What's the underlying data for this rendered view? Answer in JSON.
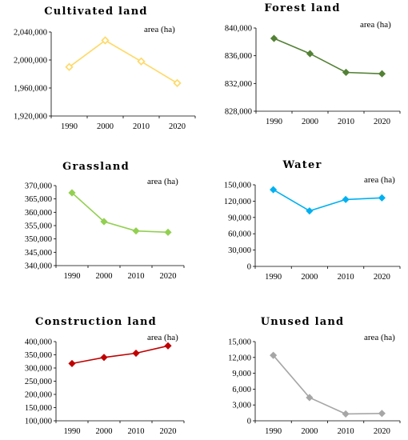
{
  "chart_data": [
    {
      "type": "line",
      "title": "Cultivated land",
      "unit_label": "area (ha)",
      "categories": [
        "1990",
        "2000",
        "2010",
        "2020"
      ],
      "series": [
        {
          "values": [
            1990000,
            2028000,
            1998000,
            1967000
          ]
        }
      ],
      "ylim": [
        1920000,
        2040000
      ],
      "yticks": [
        1920000,
        1960000,
        2000000,
        2040000
      ],
      "ytick_labels": [
        "1,920,000",
        "1,960,000",
        "2,000,000",
        "2,040,000"
      ],
      "color": "#ffd966",
      "marker": "diamond-open"
    },
    {
      "type": "line",
      "title": "Forest land",
      "unit_label": "area (ha)",
      "categories": [
        "1990",
        "2000",
        "2010",
        "2020"
      ],
      "series": [
        {
          "values": [
            838500,
            836300,
            833600,
            833400
          ]
        }
      ],
      "ylim": [
        828000,
        840000
      ],
      "yticks": [
        828000,
        832000,
        836000,
        840000
      ],
      "ytick_labels": [
        "828,000",
        "832,000",
        "836,000",
        "840,000"
      ],
      "color": "#538135",
      "marker": "diamond"
    },
    {
      "type": "line",
      "title": "Grassland",
      "unit_label": "area (ha)",
      "categories": [
        "1990",
        "2000",
        "2010",
        "2020"
      ],
      "series": [
        {
          "values": [
            367300,
            356500,
            353000,
            352500
          ]
        }
      ],
      "ylim": [
        340000,
        370000
      ],
      "yticks": [
        340000,
        345000,
        350000,
        355000,
        360000,
        365000,
        370000
      ],
      "ytick_labels": [
        "340,000",
        "345,000",
        "350,000",
        "355,000",
        "360,000",
        "365,000",
        "370,000"
      ],
      "color": "#92d050",
      "marker": "diamond"
    },
    {
      "type": "line",
      "title": "Water",
      "unit_label": "area (ha)",
      "categories": [
        "1990",
        "2000",
        "2010",
        "2020"
      ],
      "series": [
        {
          "values": [
            141000,
            102000,
            123000,
            126000
          ]
        }
      ],
      "ylim": [
        0,
        150000
      ],
      "yticks": [
        0,
        30000,
        60000,
        90000,
        120000,
        150000
      ],
      "ytick_labels": [
        "0",
        "30,000",
        "60,000",
        "90,000",
        "120,000",
        "150,000"
      ],
      "color": "#00b0f0",
      "marker": "diamond"
    },
    {
      "type": "line",
      "title": "Construction land",
      "unit_label": "area (ha)",
      "categories": [
        "1990",
        "2000",
        "2010",
        "2020"
      ],
      "series": [
        {
          "values": [
            317000,
            340000,
            356000,
            384000
          ]
        }
      ],
      "ylim": [
        100000,
        400000
      ],
      "yticks": [
        100000,
        150000,
        200000,
        250000,
        300000,
        350000,
        400000
      ],
      "ytick_labels": [
        "100,000",
        "150,000",
        "200,000",
        "250,000",
        "300,000",
        "350,000",
        "400,000"
      ],
      "color": "#c00000",
      "marker": "diamond"
    },
    {
      "type": "line",
      "title": "Unused land",
      "unit_label": "area (ha)",
      "categories": [
        "1990",
        "2000",
        "2010",
        "2020"
      ],
      "series": [
        {
          "values": [
            12400,
            4400,
            1300,
            1400
          ]
        }
      ],
      "ylim": [
        0,
        15000
      ],
      "yticks": [
        0,
        3000,
        6000,
        9000,
        12000,
        15000
      ],
      "ytick_labels": [
        "0",
        "3,000",
        "6,000",
        "9,000",
        "12,000",
        "15,000"
      ],
      "color": "#a6a6a6",
      "marker": "diamond"
    }
  ]
}
